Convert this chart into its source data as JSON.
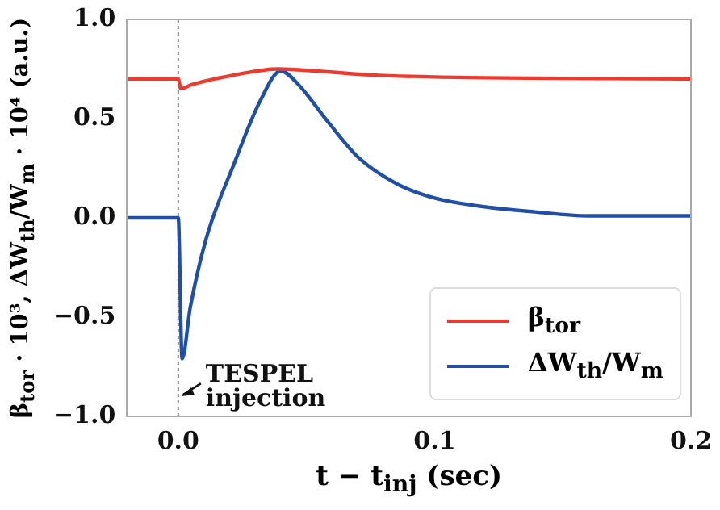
{
  "chart_data": {
    "type": "line",
    "xlabel": "t − t$_{inj}$ (sec)",
    "ylabel": "β$_{tor}$ · 10³, ΔW$_{th}$/W$_{m}$ · 10⁴ (a.u.)",
    "xlim": [
      -0.02,
      0.2
    ],
    "xticks": [
      {
        "value": 0,
        "label": "0.0"
      },
      0.1,
      0.2
    ],
    "ylim": [
      -1,
      1
    ],
    "yticks": [
      {
        "value": -1,
        "label": "−1.0"
      },
      {
        "value": -0.5,
        "label": "−0.5"
      },
      {
        "value": 0,
        "label": "0.0"
      },
      0.5,
      {
        "value": 1,
        "label": "1.0"
      }
    ],
    "grid": false,
    "legend": "bottom right",
    "marker": "none",
    "line_style": "solid",
    "series": [
      {
        "name": "β$_{tor}$",
        "color": "#f0392e",
        "x": [
          -0.02,
          0,
          0.001,
          0.005,
          0.022,
          0.039,
          0.054,
          0.075,
          0.1,
          0.2
        ],
        "values": [
          0.7,
          0.7,
          0.65,
          0.67,
          0.72,
          0.75,
          0.74,
          0.72,
          0.71,
          0.7
        ]
      },
      {
        "name": "ΔW$_{th}$/W$_{m}$",
        "color": "#1f4fa8",
        "x": [
          -0.02,
          0,
          0.0015,
          0.0047,
          0.011,
          0.0217,
          0.032,
          0.04,
          0.047,
          0.058,
          0.0706,
          0.0855,
          0.1,
          0.117,
          0.139,
          0.16,
          0.2
        ],
        "values": [
          0,
          0,
          -0.71,
          -0.45,
          -0.1,
          0.27,
          0.59,
          0.74,
          0.67,
          0.49,
          0.3,
          0.17,
          0.1,
          0.06,
          0.03,
          0.01,
          0.01
        ]
      }
    ],
    "ref_lines": [
      {
        "axis": "x",
        "value": 0,
        "color": "#888888",
        "line_style": "dotted"
      }
    ],
    "annotations": [
      {
        "text": "TESPEL injection",
        "x": 0,
        "y": -0.85
      }
    ]
  }
}
